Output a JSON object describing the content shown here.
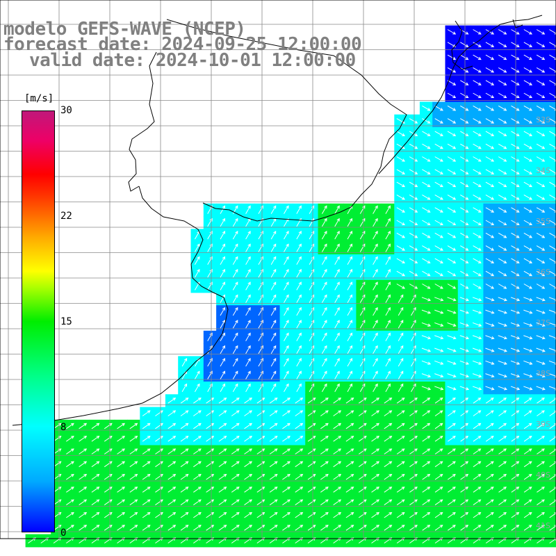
{
  "title": {
    "line1": "modelo GEFS-WAVE (NCEP)",
    "line2": "forecast date: 2024-09-25 12:00:00",
    "line3": "valid date: 2024-10-01 12:00:00"
  },
  "colorbar": {
    "unit": "[m/s]",
    "ticks": [
      "30",
      "22",
      "15",
      "8",
      "0"
    ],
    "colors": [
      "#0000ff",
      "#00aaff",
      "#00ffff",
      "#00ff88",
      "#00ee00",
      "#aaff00",
      "#ffff00",
      "#ffaa00",
      "#ff3300",
      "#ff0000",
      "#c0187a"
    ]
  },
  "lat_labels": [
    "33S",
    "34S",
    "35S",
    "36S",
    "37S",
    "38S",
    "39S",
    "40S",
    "41S"
  ],
  "map": {
    "land_color": "#ffffff",
    "coast_color": "#000000",
    "grid_color": "#888888",
    "arrow_color": "#ffffff"
  }
}
